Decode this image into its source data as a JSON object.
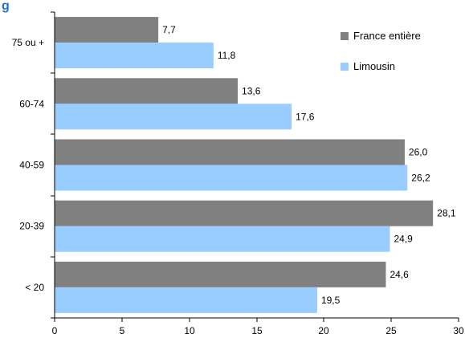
{
  "chart_data": {
    "type": "bar",
    "orientation": "horizontal",
    "title": "g",
    "categories": [
      "75 ou +",
      "60-74",
      "40-59",
      "20-39",
      "< 20"
    ],
    "series": [
      {
        "name": "France entière",
        "color": "#808080",
        "values": [
          7.7,
          13.6,
          26.0,
          28.1,
          24.6
        ],
        "labels": [
          "7,7",
          "13,6",
          "26,0",
          "28,1",
          "24,6"
        ]
      },
      {
        "name": "Limousin",
        "color": "#99ccff",
        "values": [
          11.8,
          17.6,
          26.2,
          24.9,
          19.5
        ],
        "labels": [
          "11,8",
          "17,6",
          "26,2",
          "24,9",
          "19,5"
        ]
      }
    ],
    "xlim": [
      0,
      30
    ],
    "xticks": [
      0,
      5,
      10,
      15,
      20,
      25,
      30
    ],
    "grid": false,
    "legend": "top-right"
  }
}
